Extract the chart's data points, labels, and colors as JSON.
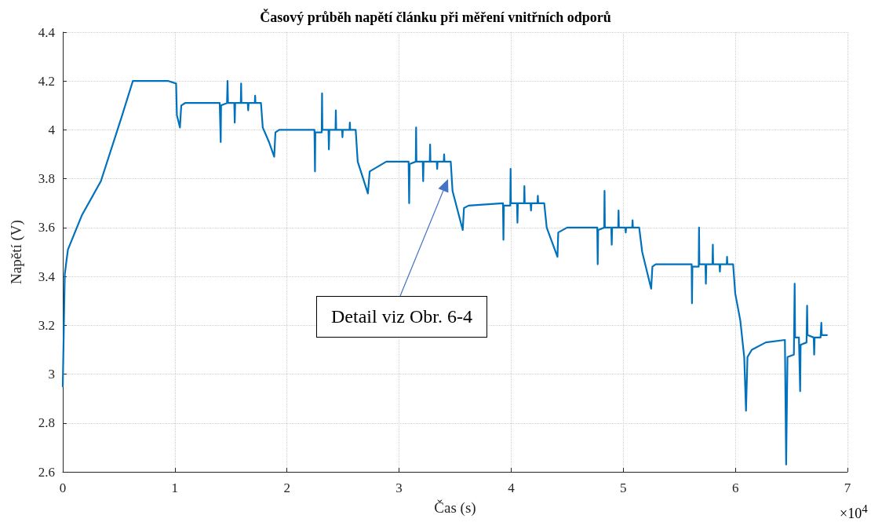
{
  "chart_data": {
    "type": "line",
    "title": "Časový průběh napětí článku při měření vnitřních odporů",
    "xlabel": "Čas (s)",
    "ylabel": "Napětí (V)",
    "annotations": [
      "Detail viz Obr. 6-4",
      "×10$^{4}$"
    ],
    "xlim": [
      0,
      7
    ],
    "xticks": [
      0,
      1,
      2,
      3,
      4,
      5,
      6,
      7
    ],
    "ylim": [
      2.6,
      4.4
    ],
    "yticks": [
      2.6,
      2.8,
      3,
      3.2,
      3.4,
      3.6,
      3.8,
      4,
      4.2,
      4.4
    ],
    "grid": true,
    "marker": "none",
    "line_style": "solid",
    "series": [
      {
        "color": "#0072bd",
        "x": [
          0,
          0.018,
          0.046,
          0.17,
          0.34,
          0.523,
          0.625,
          0.943,
          1.011,
          1.018,
          1.045,
          1.057,
          1.091,
          1.4,
          1.409,
          1.412,
          1.465,
          1.47,
          1.474,
          1.53,
          1.534,
          1.538,
          1.588,
          1.591,
          1.594,
          1.65,
          1.654,
          1.658,
          1.713,
          1.716,
          1.719,
          1.768,
          1.784,
          1.84,
          1.886,
          1.897,
          1.931,
          2.245,
          2.25,
          2.253,
          2.31,
          2.313,
          2.316,
          2.37,
          2.374,
          2.378,
          2.433,
          2.436,
          2.439,
          2.492,
          2.495,
          2.498,
          2.558,
          2.561,
          2.564,
          2.613,
          2.631,
          2.722,
          2.738,
          2.886,
          3.085,
          3.09,
          3.094,
          3.149,
          3.152,
          3.155,
          3.211,
          3.215,
          3.219,
          3.274,
          3.277,
          3.28,
          3.336,
          3.34,
          3.344,
          3.399,
          3.402,
          3.405,
          3.461,
          3.477,
          3.568,
          3.579,
          3.62,
          3.927,
          3.931,
          3.935,
          3.992,
          3.995,
          3.998,
          4.052,
          4.056,
          4.06,
          4.115,
          4.118,
          4.121,
          4.173,
          4.177,
          4.181,
          4.235,
          4.238,
          4.241,
          4.295,
          4.317,
          4.413,
          4.42,
          4.499,
          4.768,
          4.772,
          4.776,
          4.83,
          4.833,
          4.836,
          4.893,
          4.897,
          4.901,
          4.955,
          4.958,
          4.961,
          5.018,
          5.022,
          5.026,
          5.08,
          5.083,
          5.086,
          5.142,
          5.169,
          5.249,
          5.26,
          5.29,
          5.61,
          5.613,
          5.617,
          5.673,
          5.676,
          5.679,
          5.733,
          5.737,
          5.741,
          5.796,
          5.799,
          5.802,
          5.858,
          5.862,
          5.866,
          5.923,
          5.926,
          5.929,
          5.98,
          5.999,
          6.044,
          6.079,
          6.095,
          6.108,
          6.147,
          6.272,
          6.442,
          6.453,
          6.465,
          6.522,
          6.529,
          6.533,
          6.567,
          6.578,
          6.582,
          6.635,
          6.64,
          6.644,
          6.699,
          6.703,
          6.707,
          6.76,
          6.767,
          6.771,
          6.817
        ],
        "values": [
          2.95,
          3.41,
          3.51,
          3.65,
          3.79,
          4.05,
          4.2,
          4.2,
          4.19,
          4.06,
          4.01,
          4.1,
          4.11,
          4.11,
          3.95,
          4.1,
          4.11,
          4.2,
          4.11,
          4.11,
          4.03,
          4.11,
          4.11,
          4.19,
          4.11,
          4.11,
          4.08,
          4.11,
          4.11,
          4.14,
          4.11,
          4.11,
          4.01,
          3.95,
          3.89,
          3.99,
          4,
          4,
          3.83,
          3.99,
          3.99,
          4.15,
          4,
          4,
          3.92,
          4,
          4,
          4.08,
          4,
          4,
          3.97,
          4,
          4,
          4.03,
          4,
          4,
          3.87,
          3.74,
          3.83,
          3.87,
          3.87,
          3.7,
          3.86,
          3.87,
          4.01,
          3.87,
          3.87,
          3.79,
          3.87,
          3.87,
          3.94,
          3.87,
          3.87,
          3.84,
          3.87,
          3.87,
          3.9,
          3.87,
          3.87,
          3.75,
          3.59,
          3.68,
          3.69,
          3.7,
          3.55,
          3.69,
          3.69,
          3.84,
          3.7,
          3.7,
          3.62,
          3.7,
          3.7,
          3.77,
          3.7,
          3.7,
          3.67,
          3.7,
          3.7,
          3.73,
          3.7,
          3.7,
          3.6,
          3.48,
          3.58,
          3.6,
          3.6,
          3.45,
          3.59,
          3.6,
          3.75,
          3.6,
          3.6,
          3.53,
          3.6,
          3.6,
          3.67,
          3.6,
          3.6,
          3.58,
          3.6,
          3.6,
          3.63,
          3.6,
          3.6,
          3.5,
          3.35,
          3.44,
          3.45,
          3.45,
          3.29,
          3.44,
          3.44,
          3.6,
          3.45,
          3.45,
          3.37,
          3.45,
          3.45,
          3.53,
          3.45,
          3.45,
          3.42,
          3.45,
          3.45,
          3.48,
          3.45,
          3.45,
          3.33,
          3.22,
          3.07,
          2.85,
          3.07,
          3.1,
          3.13,
          3.14,
          2.63,
          3.07,
          3.08,
          3.37,
          3.15,
          3.15,
          2.93,
          3.12,
          3.13,
          3.28,
          3.16,
          3.15,
          3.08,
          3.15,
          3.15,
          3.21,
          3.16,
          3.16
        ]
      }
    ]
  }
}
